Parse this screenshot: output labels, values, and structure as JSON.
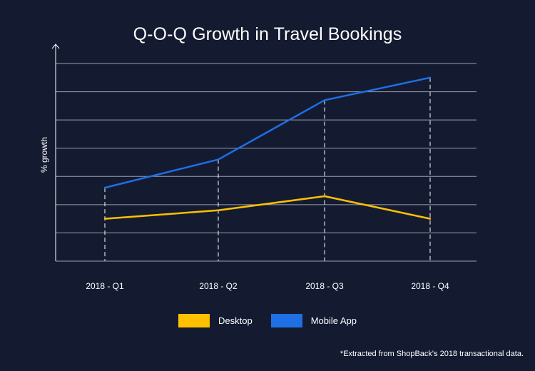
{
  "chart_data": {
    "type": "line",
    "title": "Q-O-Q Growth in Travel Bookings",
    "xlabel": "",
    "ylabel": "% growth",
    "categories": [
      "2018 - Q1",
      "2018 - Q2",
      "2018 - Q3",
      "2018 - Q4"
    ],
    "series": [
      {
        "name": "Desktop",
        "color": "#ffc000",
        "values": [
          1.5,
          1.8,
          2.3,
          1.5
        ]
      },
      {
        "name": "Mobile App",
        "color": "#1f6fe5",
        "values": [
          2.6,
          3.6,
          5.7,
          6.5
        ]
      }
    ],
    "ylim": [
      0,
      7
    ],
    "y_tick_labels_shown": false,
    "grid": true,
    "legend_position": "bottom"
  },
  "footnote": "*Extracted from ShopBack's 2018 transactional data.",
  "colors": {
    "background": "#141b31",
    "grid": "#9aa0ac",
    "axis": "#ffffff"
  }
}
